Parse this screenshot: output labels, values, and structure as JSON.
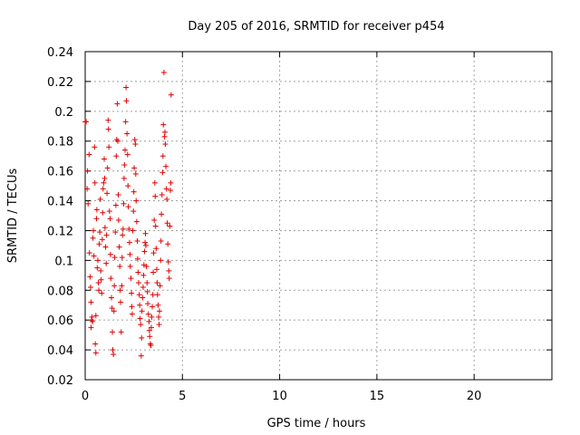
{
  "chart_data": {
    "type": "scatter",
    "title": "Day 205 of 2016, SRMTID for receiver p454",
    "xlabel": "GPS time / hours",
    "ylabel": "SRMTID / TECUs",
    "xlim": [
      0,
      24
    ],
    "ylim": [
      0.02,
      0.24
    ],
    "xticks": [
      0,
      5,
      10,
      15,
      20
    ],
    "yticks": [
      0.02,
      0.04,
      0.06,
      0.08,
      0.1,
      0.12,
      0.14,
      0.16,
      0.18,
      0.2,
      0.22,
      0.24
    ],
    "xtick_labels": [
      "0",
      "5",
      "10",
      "15",
      "20"
    ],
    "ytick_labels": [
      "0.02",
      "0.04",
      "0.06",
      "0.08",
      "0.1",
      "0.12",
      "0.14",
      "0.16",
      "0.18",
      "0.2",
      "0.22",
      "0.24"
    ],
    "grid": true,
    "marker": "+",
    "color": "#e00000",
    "series": [
      {
        "name": "SRMTID",
        "points": [
          [
            0.0,
            0.193
          ],
          [
            0.05,
            0.193
          ],
          [
            0.1,
            0.148
          ],
          [
            0.12,
            0.16
          ],
          [
            0.15,
            0.138
          ],
          [
            0.2,
            0.171
          ],
          [
            0.22,
            0.105
          ],
          [
            0.25,
            0.089
          ],
          [
            0.28,
            0.082
          ],
          [
            0.3,
            0.072
          ],
          [
            0.3,
            0.055
          ],
          [
            0.33,
            0.06
          ],
          [
            0.35,
            0.062
          ],
          [
            0.38,
            0.059
          ],
          [
            0.4,
            0.115
          ],
          [
            0.42,
            0.12
          ],
          [
            0.45,
            0.103
          ],
          [
            0.48,
            0.176
          ],
          [
            0.5,
            0.152
          ],
          [
            0.52,
            0.044
          ],
          [
            0.55,
            0.038
          ],
          [
            0.55,
            0.063
          ],
          [
            0.58,
            0.128
          ],
          [
            0.6,
            0.134
          ],
          [
            0.62,
            0.095
          ],
          [
            0.65,
            0.1
          ],
          [
            0.68,
            0.085
          ],
          [
            0.7,
            0.08
          ],
          [
            0.72,
            0.111
          ],
          [
            0.75,
            0.119
          ],
          [
            0.78,
            0.141
          ],
          [
            0.8,
            0.093
          ],
          [
            0.82,
            0.087
          ],
          [
            0.85,
            0.078
          ],
          [
            0.88,
            0.114
          ],
          [
            0.9,
            0.132
          ],
          [
            0.92,
            0.148
          ],
          [
            0.95,
            0.152
          ],
          [
            0.98,
            0.168
          ],
          [
            1.0,
            0.155
          ],
          [
            1.02,
            0.122
          ],
          [
            1.05,
            0.109
          ],
          [
            1.08,
            0.098
          ],
          [
            1.1,
            0.117
          ],
          [
            1.12,
            0.145
          ],
          [
            1.15,
            0.162
          ],
          [
            1.18,
            0.194
          ],
          [
            1.2,
            0.188
          ],
          [
            1.22,
            0.176
          ],
          [
            1.25,
            0.133
          ],
          [
            1.28,
            0.128
          ],
          [
            1.3,
            0.104
          ],
          [
            1.32,
            0.088
          ],
          [
            1.35,
            0.075
          ],
          [
            1.38,
            0.068
          ],
          [
            1.4,
            0.052
          ],
          [
            1.42,
            0.04
          ],
          [
            1.45,
            0.037
          ],
          [
            1.48,
            0.066
          ],
          [
            1.5,
            0.083
          ],
          [
            1.52,
            0.102
          ],
          [
            1.55,
            0.119
          ],
          [
            1.58,
            0.137
          ],
          [
            1.6,
            0.17
          ],
          [
            1.62,
            0.181
          ],
          [
            1.65,
            0.205
          ],
          [
            1.68,
            0.18
          ],
          [
            1.7,
            0.144
          ],
          [
            1.72,
            0.127
          ],
          [
            1.75,
            0.109
          ],
          [
            1.78,
            0.096
          ],
          [
            1.8,
            0.08
          ],
          [
            1.82,
            0.072
          ],
          [
            1.85,
            0.052
          ],
          [
            1.88,
            0.083
          ],
          [
            1.9,
            0.102
          ],
          [
            1.92,
            0.117
          ],
          [
            1.95,
            0.121
          ],
          [
            1.98,
            0.138
          ],
          [
            2.0,
            0.155
          ],
          [
            2.02,
            0.164
          ],
          [
            2.05,
            0.174
          ],
          [
            2.08,
            0.193
          ],
          [
            2.1,
            0.216
          ],
          [
            2.12,
            0.207
          ],
          [
            2.15,
            0.185
          ],
          [
            2.18,
            0.171
          ],
          [
            2.2,
            0.15
          ],
          [
            2.22,
            0.136
          ],
          [
            2.25,
            0.121
          ],
          [
            2.28,
            0.112
          ],
          [
            2.3,
            0.104
          ],
          [
            2.32,
            0.096
          ],
          [
            2.35,
            0.088
          ],
          [
            2.38,
            0.078
          ],
          [
            2.4,
            0.069
          ],
          [
            2.42,
            0.064
          ],
          [
            2.45,
            0.12
          ],
          [
            2.48,
            0.133
          ],
          [
            2.5,
            0.146
          ],
          [
            2.52,
            0.162
          ],
          [
            2.55,
            0.181
          ],
          [
            2.58,
            0.178
          ],
          [
            2.6,
            0.158
          ],
          [
            2.62,
            0.14
          ],
          [
            2.65,
            0.126
          ],
          [
            2.68,
            0.113
          ],
          [
            2.7,
            0.101
          ],
          [
            2.72,
            0.092
          ],
          [
            2.75,
            0.085
          ],
          [
            2.78,
            0.077
          ],
          [
            2.8,
            0.07
          ],
          [
            2.82,
            0.061
          ],
          [
            2.85,
            0.057
          ],
          [
            2.88,
            0.036
          ],
          [
            2.9,
            0.048
          ],
          [
            2.92,
            0.066
          ],
          [
            2.95,
            0.075
          ],
          [
            2.98,
            0.082
          ],
          [
            3.0,
            0.09
          ],
          [
            3.02,
            0.097
          ],
          [
            3.05,
            0.106
          ],
          [
            3.08,
            0.112
          ],
          [
            3.1,
            0.118
          ],
          [
            3.12,
            0.11
          ],
          [
            3.15,
            0.096
          ],
          [
            3.18,
            0.085
          ],
          [
            3.2,
            0.079
          ],
          [
            3.22,
            0.071
          ],
          [
            3.25,
            0.064
          ],
          [
            3.28,
            0.059
          ],
          [
            3.3,
            0.053
          ],
          [
            3.32,
            0.049
          ],
          [
            3.35,
            0.044
          ],
          [
            3.38,
            0.043
          ],
          [
            3.4,
            0.055
          ],
          [
            3.42,
            0.062
          ],
          [
            3.45,
            0.069
          ],
          [
            3.48,
            0.077
          ],
          [
            3.5,
            0.092
          ],
          [
            3.52,
            0.105
          ],
          [
            3.55,
            0.127
          ],
          [
            3.58,
            0.152
          ],
          [
            3.6,
            0.143
          ],
          [
            3.62,
            0.123
          ],
          [
            3.65,
            0.108
          ],
          [
            3.68,
            0.094
          ],
          [
            3.7,
            0.085
          ],
          [
            3.72,
            0.077
          ],
          [
            3.75,
            0.07
          ],
          [
            3.78,
            0.062
          ],
          [
            3.8,
            0.057
          ],
          [
            3.82,
            0.066
          ],
          [
            3.85,
            0.083
          ],
          [
            3.88,
            0.1
          ],
          [
            3.9,
            0.113
          ],
          [
            3.92,
            0.131
          ],
          [
            3.95,
            0.144
          ],
          [
            3.98,
            0.159
          ],
          [
            4.0,
            0.17
          ],
          [
            4.02,
            0.191
          ],
          [
            4.05,
            0.226
          ],
          [
            4.08,
            0.183
          ],
          [
            4.1,
            0.186
          ],
          [
            4.12,
            0.178
          ],
          [
            4.15,
            0.163
          ],
          [
            4.18,
            0.148
          ],
          [
            4.2,
            0.141
          ],
          [
            4.22,
            0.125
          ],
          [
            4.25,
            0.111
          ],
          [
            4.28,
            0.099
          ],
          [
            4.3,
            0.093
          ],
          [
            4.32,
            0.088
          ],
          [
            4.35,
            0.123
          ],
          [
            4.38,
            0.147
          ],
          [
            4.4,
            0.152
          ],
          [
            4.42,
            0.211
          ]
        ]
      }
    ]
  }
}
